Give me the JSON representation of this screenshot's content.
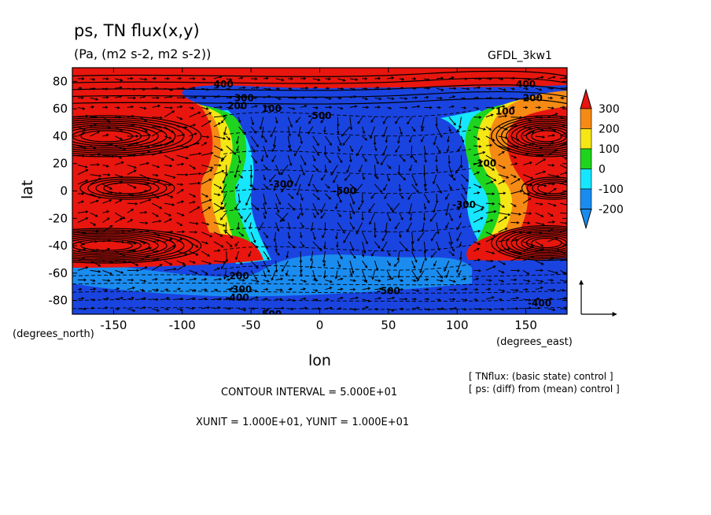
{
  "chart_data": {
    "type": "contour",
    "title": "ps, TN flux(x,y)",
    "subtitle": "(Pa, (m2 s-2, m2 s-2))",
    "model": "GFDL_3kw1",
    "xlabel": "lon",
    "ylabel": "lat",
    "x_unit_label": "(degrees_east)",
    "y_unit_label": "(degrees_north)",
    "xlim": [
      -180,
      180
    ],
    "ylim": [
      -90,
      90
    ],
    "x_ticks": [
      -150,
      -100,
      -50,
      0,
      50,
      100,
      150
    ],
    "x_tick_labels": [
      "-150",
      "-100",
      "-50",
      "0",
      "50",
      "100",
      "150"
    ],
    "y_ticks": [
      80,
      60,
      40,
      20,
      0,
      -20,
      -40,
      -60,
      -80
    ],
    "y_tick_labels": [
      "80",
      "60",
      "40",
      "20",
      "0",
      "-20",
      "-40",
      "-60",
      "-80"
    ],
    "colorbar": {
      "levels": [
        "300",
        "200",
        "100",
        "0",
        "-100",
        "-200"
      ],
      "colors": [
        "#e8160e",
        "#f58a14",
        "#f5e616",
        "#1ed41e",
        "#16e6ff",
        "#1a8cf0",
        "#1a44e0"
      ],
      "lower_triangle_color": "#1a8cf0",
      "upper_triangle_color": "#e8160e"
    },
    "contour_labels": [
      {
        "text": "400",
        "lon": -70,
        "lat": 78
      },
      {
        "text": "300",
        "lon": -55,
        "lat": 68
      },
      {
        "text": "200",
        "lon": -60,
        "lat": 62
      },
      {
        "text": "100",
        "lon": -35,
        "lat": 60
      },
      {
        "text": "-500",
        "lon": 0,
        "lat": 55
      },
      {
        "text": "400",
        "lon": 150,
        "lat": 78
      },
      {
        "text": "200",
        "lon": 155,
        "lat": 68
      },
      {
        "text": "100",
        "lon": 135,
        "lat": 58
      },
      {
        "text": "-300",
        "lon": -28,
        "lat": 5
      },
      {
        "text": "-500",
        "lon": 18,
        "lat": 0
      },
      {
        "text": "-300",
        "lon": 105,
        "lat": -10
      },
      {
        "text": "-100",
        "lon": 120,
        "lat": 20
      },
      {
        "text": "-200",
        "lon": -60,
        "lat": -62
      },
      {
        "text": "-300",
        "lon": -58,
        "lat": -72
      },
      {
        "text": "-400",
        "lon": -60,
        "lat": -78
      },
      {
        "text": "-500",
        "lon": 50,
        "lat": -73
      },
      {
        "text": "-500.",
        "lon": -35,
        "lat": -90
      },
      {
        "text": "-400",
        "lon": 160,
        "lat": -82
      }
    ],
    "contour_interval_text": "CONTOUR INTERVAL = 5.000E+01",
    "units_text": "XUNIT = 1.000E+01, YUNIT = 1.000E+01",
    "notes": [
      "[ TNflux: (basic state) control ]",
      "[ ps: (diff) from (mean) control ]"
    ]
  }
}
